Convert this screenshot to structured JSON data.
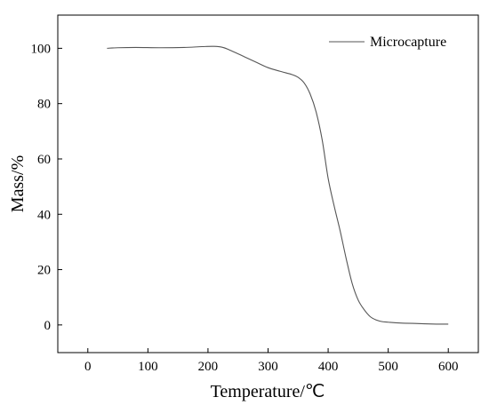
{
  "chart_data": {
    "type": "line",
    "title": "",
    "xlabel": "Temperature/℃",
    "ylabel": "Mass/%",
    "xlim": [
      -50,
      650
    ],
    "ylim": [
      -10,
      112
    ],
    "xticks": [
      0,
      100,
      200,
      300,
      400,
      500,
      600
    ],
    "yticks": [
      0,
      20,
      40,
      60,
      80,
      100
    ],
    "grid": false,
    "legend_position": "top-right",
    "series": [
      {
        "name": "Microcapture",
        "color": "#555555",
        "x": [
          32,
          50,
          80,
          120,
          160,
          190,
          210,
          225,
          240,
          260,
          280,
          300,
          320,
          340,
          350,
          360,
          370,
          380,
          390,
          400,
          410,
          420,
          430,
          440,
          450,
          460,
          470,
          480,
          490,
          500,
          520,
          550,
          580,
          600
        ],
        "y": [
          100,
          100.2,
          100.3,
          100.2,
          100.3,
          100.6,
          100.7,
          100.3,
          99,
          97,
          95,
          93,
          91.7,
          90.5,
          89.5,
          87.5,
          83.5,
          77,
          67,
          53,
          43,
          34,
          24,
          15,
          9,
          5.5,
          3,
          1.8,
          1.2,
          1,
          0.7,
          0.5,
          0.3,
          0.3
        ]
      }
    ]
  }
}
